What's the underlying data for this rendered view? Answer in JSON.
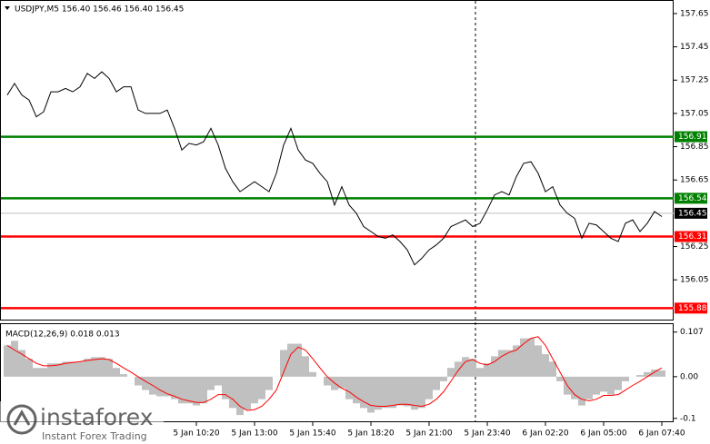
{
  "chart_data": [
    {
      "type": "line",
      "title": "USDJPY,M5  156.40 156.46 156.40 156.45",
      "color": "#000000",
      "categories": [
        null,
        null,
        null,
        null,
        null,
        null,
        null,
        null,
        null,
        null,
        null,
        null,
        null,
        null,
        null,
        null,
        null,
        null,
        null,
        null,
        null,
        null,
        null,
        null,
        null,
        null,
        "5 Jan 10:20",
        null,
        null,
        null,
        null,
        null,
        null,
        null,
        "5 Jan 13:00",
        null,
        null,
        null,
        null,
        null,
        null,
        null,
        "5 Jan 15:40",
        null,
        null,
        null,
        null,
        null,
        null,
        null,
        "5 Jan 18:20",
        null,
        null,
        null,
        null,
        null,
        null,
        null,
        "5 Jan 21:00",
        null,
        null,
        null,
        null,
        null,
        null,
        null,
        "5 Jan 23:40",
        null,
        null,
        null,
        null,
        null,
        null,
        null,
        "6 Jan 02:20",
        null,
        null,
        null,
        null,
        null,
        null,
        null,
        "6 Jan 05:00",
        null,
        null,
        null,
        null,
        null,
        null,
        null,
        "6 Jan 07:40"
      ],
      "values": [
        157.16,
        157.23,
        157.16,
        157.13,
        157.03,
        157.06,
        157.18,
        157.18,
        157.2,
        157.18,
        157.21,
        157.29,
        157.26,
        157.3,
        157.26,
        157.18,
        157.21,
        157.21,
        157.07,
        157.05,
        157.05,
        157.05,
        157.07,
        156.96,
        156.83,
        156.87,
        156.86,
        156.88,
        156.96,
        156.86,
        156.72,
        156.64,
        156.58,
        156.61,
        156.64,
        156.61,
        156.58,
        156.69,
        156.86,
        156.96,
        156.83,
        156.77,
        156.75,
        156.69,
        156.64,
        156.5,
        156.61,
        156.5,
        156.45,
        156.37,
        156.34,
        156.31,
        156.3,
        156.32,
        156.28,
        156.23,
        156.14,
        156.18,
        156.23,
        156.26,
        156.3,
        156.37,
        156.39,
        156.41,
        156.37,
        156.39,
        156.47,
        156.56,
        156.58,
        156.56,
        156.67,
        156.75,
        156.76,
        156.69,
        156.58,
        156.61,
        156.5,
        156.45,
        156.42,
        156.3,
        156.39,
        156.38,
        156.34,
        156.3,
        156.28,
        156.39,
        156.41,
        156.34,
        156.39,
        156.46,
        156.43
      ],
      "ylim": [
        155.811,
        157.726
      ],
      "yticks": [
        157.65,
        157.45,
        157.25,
        157.05,
        156.85,
        156.65,
        156.25,
        156.05
      ],
      "levels": [
        {
          "value": 156.91,
          "color": "#008000"
        },
        {
          "value": 156.54,
          "color": "#008000"
        },
        {
          "value": 156.31,
          "color": "#ff0000"
        },
        {
          "value": 155.88,
          "color": "#ff0000"
        }
      ],
      "last": 156.45
    },
    {
      "type": "macd",
      "title": "MACD(12,26,9) 0.018 0.013",
      "ylim": [
        -0.107,
        0.126
      ],
      "yticks": [
        0.107,
        {
          "value": 0,
          "label": "0.00"
        },
        -0.1
      ],
      "series": [
        {
          "kind": "histogram",
          "color": "#c0c0c0",
          "values": [
            0.075,
            0.086,
            0.064,
            0.043,
            0.021,
            0.021,
            0.032,
            0.032,
            0.036,
            0.036,
            0.036,
            0.043,
            0.047,
            0.047,
            0.043,
            0.021,
            0.006,
            0,
            -0.021,
            -0.032,
            -0.043,
            -0.047,
            -0.047,
            -0.054,
            -0.064,
            -0.064,
            -0.069,
            -0.064,
            -0.032,
            -0.021,
            -0.054,
            -0.075,
            -0.092,
            -0.079,
            -0.064,
            -0.054,
            -0.032,
            0,
            0.064,
            0.079,
            0.079,
            0.049,
            0.011,
            0,
            -0.021,
            -0.032,
            -0.028,
            -0.054,
            -0.064,
            -0.075,
            -0.086,
            -0.079,
            -0.075,
            -0.075,
            -0.069,
            -0.071,
            -0.079,
            -0.075,
            -0.054,
            -0.032,
            -0.011,
            0.021,
            0.036,
            0.047,
            0.043,
            0.021,
            0.032,
            0.049,
            0.064,
            0.064,
            0.075,
            0.092,
            0.092,
            0.075,
            0.054,
            0.036,
            -0.011,
            -0.043,
            -0.054,
            -0.069,
            -0.054,
            -0.043,
            -0.036,
            -0.043,
            -0.032,
            -0.011,
            0,
            0.004,
            0.011,
            0.017,
            0.015
          ]
        },
        {
          "kind": "line",
          "color": "#ff0000",
          "values": [
            0.075,
            0.064,
            0.054,
            0.043,
            0.032,
            0.026,
            0.026,
            0.028,
            0.032,
            0.034,
            0.036,
            0.039,
            0.041,
            0.043,
            0.041,
            0.032,
            0.021,
            0.011,
            0,
            -0.011,
            -0.021,
            -0.032,
            -0.041,
            -0.047,
            -0.054,
            -0.058,
            -0.062,
            -0.062,
            -0.054,
            -0.043,
            -0.043,
            -0.054,
            -0.071,
            -0.081,
            -0.079,
            -0.071,
            -0.054,
            -0.032,
            0.011,
            0.054,
            0.071,
            0.064,
            0.043,
            0.021,
            0,
            -0.015,
            -0.028,
            -0.036,
            -0.049,
            -0.06,
            -0.069,
            -0.071,
            -0.071,
            -0.069,
            -0.066,
            -0.066,
            -0.069,
            -0.071,
            -0.066,
            -0.054,
            -0.036,
            -0.011,
            0.015,
            0.036,
            0.041,
            0.032,
            0.028,
            0.036,
            0.049,
            0.058,
            0.064,
            0.079,
            0.092,
            0.096,
            0.075,
            0.043,
            0.011,
            -0.021,
            -0.043,
            -0.054,
            -0.058,
            -0.054,
            -0.045,
            -0.045,
            -0.043,
            -0.032,
            -0.021,
            -0.011,
            0,
            0.011,
            0.021
          ]
        }
      ]
    }
  ],
  "watermark": {
    "brand": "instaforex",
    "tagline": "Instant Forex Trading"
  }
}
